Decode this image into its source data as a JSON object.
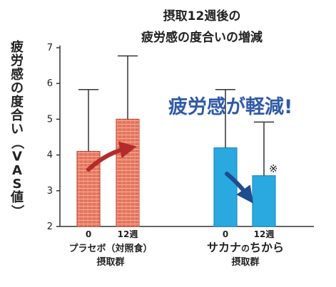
{
  "chart_data": {
    "type": "bar",
    "title_lines": [
      "摂取12週後の",
      "疲労感の度合いの増減"
    ],
    "ylabel": "疲労感の度合い（VAS値）",
    "ylim": [
      2,
      7
    ],
    "yticks": [
      2,
      3,
      4,
      5,
      6,
      7
    ],
    "grid": false,
    "groups": [
      {
        "label": "プラセボ（対照食）",
        "sublabel": "摂取群",
        "color": "#e4735a",
        "categories": [
          "0",
          "12週"
        ],
        "values": [
          4.1,
          5.0
        ],
        "error_upper": [
          5.83,
          6.77
        ]
      },
      {
        "label_parts": [
          "サカナ",
          "の",
          "ちから"
        ],
        "sublabel": "摂取群",
        "color": "#2aa9e0",
        "categories": [
          "0",
          "12週"
        ],
        "values": [
          4.2,
          3.42
        ],
        "error_upper": [
          5.83,
          4.92
        ]
      }
    ],
    "annotations": {
      "callout": "疲労感が軽減!",
      "significance_mark": "※",
      "arrow_color_placebo": "#b32b2b",
      "arrow_color_sakana": "#1f4b8f"
    }
  }
}
